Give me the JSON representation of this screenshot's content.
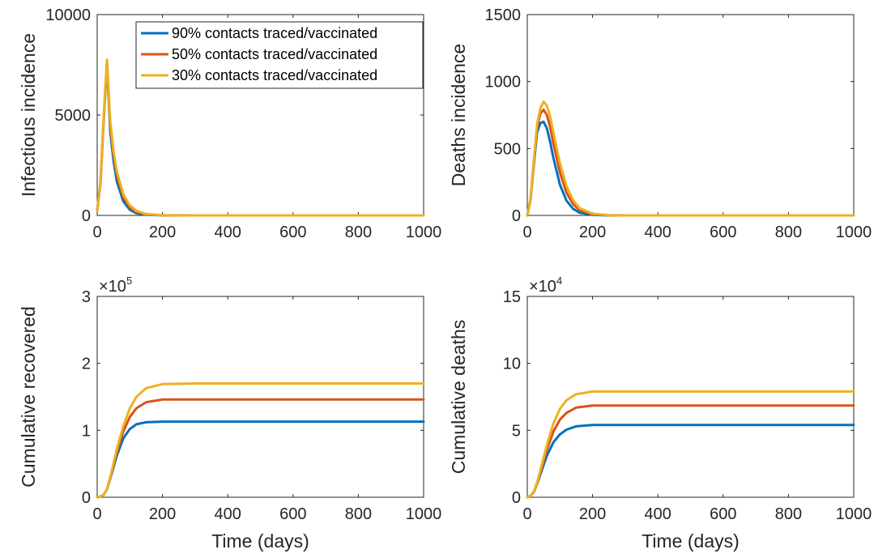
{
  "chart_data": [
    {
      "type": "line",
      "xlabel": "",
      "ylabel": "Infectious incidence",
      "xlim": [
        0,
        1000
      ],
      "ylim": [
        0,
        10000
      ],
      "xticks": [
        0,
        200,
        400,
        600,
        800,
        1000
      ],
      "yticks": [
        0,
        5000,
        10000
      ],
      "multiplier": null,
      "legend": "top-right",
      "series": [
        {
          "name": "90% contacts traced/vaccinated",
          "color": "#0072BD",
          "x": [
            0,
            10,
            20,
            30,
            40,
            50,
            60,
            80,
            100,
            120,
            150,
            200,
            300,
            1000
          ],
          "y": [
            250,
            1600,
            4800,
            7600,
            4200,
            2700,
            1700,
            700,
            280,
            110,
            30,
            5,
            0,
            0
          ]
        },
        {
          "name": "50% contacts traced/vaccinated",
          "color": "#D95319",
          "x": [
            0,
            10,
            20,
            30,
            40,
            50,
            60,
            80,
            100,
            120,
            150,
            200,
            300,
            1000
          ],
          "y": [
            250,
            1650,
            4900,
            7700,
            4500,
            3000,
            2000,
            900,
            400,
            170,
            50,
            8,
            0,
            0
          ]
        },
        {
          "name": "30% contacts traced/vaccinated",
          "color": "#EDB120",
          "x": [
            0,
            10,
            20,
            30,
            40,
            50,
            60,
            80,
            100,
            120,
            150,
            200,
            300,
            1000
          ],
          "y": [
            250,
            1700,
            5000,
            7750,
            4700,
            3200,
            2200,
            1050,
            500,
            230,
            70,
            12,
            0,
            0
          ]
        }
      ]
    },
    {
      "type": "line",
      "xlabel": "",
      "ylabel": "Deaths incidence",
      "xlim": [
        0,
        1000
      ],
      "ylim": [
        0,
        1500
      ],
      "xticks": [
        0,
        200,
        400,
        600,
        800,
        1000
      ],
      "yticks": [
        0,
        500,
        1000,
        1500
      ],
      "multiplier": null,
      "series": [
        {
          "name": "90% contacts traced/vaccinated",
          "color": "#0072BD",
          "x": [
            0,
            10,
            20,
            30,
            40,
            50,
            60,
            70,
            80,
            100,
            120,
            140,
            160,
            200,
            250,
            300,
            1000
          ],
          "y": [
            0,
            120,
            380,
            620,
            690,
            700,
            650,
            550,
            430,
            230,
            110,
            50,
            20,
            4,
            0,
            0,
            0
          ]
        },
        {
          "name": "50% contacts traced/vaccinated",
          "color": "#D95319",
          "x": [
            0,
            10,
            20,
            30,
            40,
            50,
            60,
            70,
            80,
            100,
            120,
            140,
            160,
            200,
            250,
            300,
            1000
          ],
          "y": [
            0,
            120,
            400,
            660,
            760,
            790,
            750,
            660,
            540,
            320,
            170,
            85,
            40,
            9,
            1,
            0,
            0
          ]
        },
        {
          "name": "30% contacts traced/vaccinated",
          "color": "#EDB120",
          "x": [
            0,
            10,
            20,
            30,
            40,
            50,
            60,
            70,
            80,
            100,
            120,
            140,
            160,
            200,
            250,
            300,
            1000
          ],
          "y": [
            0,
            125,
            410,
            680,
            800,
            850,
            820,
            740,
            620,
            390,
            220,
            115,
            55,
            13,
            2,
            0,
            0
          ]
        }
      ]
    },
    {
      "type": "line",
      "xlabel": "Time (days)",
      "ylabel": "Cumulative recovered",
      "xlim": [
        0,
        1000
      ],
      "ylim": [
        0,
        3
      ],
      "xticks": [
        0,
        200,
        400,
        600,
        800,
        1000
      ],
      "yticks": [
        0,
        1,
        2,
        3
      ],
      "multiplier": {
        "base": "×10",
        "exp": "5"
      },
      "series": [
        {
          "name": "90% contacts traced/vaccinated",
          "color": "#0072BD",
          "x": [
            0,
            10,
            20,
            30,
            40,
            50,
            60,
            80,
            100,
            120,
            150,
            200,
            300,
            1000
          ],
          "y": [
            0,
            0.01,
            0.04,
            0.12,
            0.28,
            0.45,
            0.62,
            0.88,
            1.02,
            1.09,
            1.12,
            1.13,
            1.13,
            1.13
          ]
        },
        {
          "name": "50% contacts traced/vaccinated",
          "color": "#D95319",
          "x": [
            0,
            10,
            20,
            30,
            40,
            50,
            60,
            80,
            100,
            120,
            150,
            200,
            300,
            1000
          ],
          "y": [
            0,
            0.01,
            0.04,
            0.12,
            0.29,
            0.48,
            0.67,
            0.98,
            1.2,
            1.33,
            1.42,
            1.46,
            1.46,
            1.46
          ]
        },
        {
          "name": "30% contacts traced/vaccinated",
          "color": "#EDB120",
          "x": [
            0,
            10,
            20,
            30,
            40,
            50,
            60,
            80,
            100,
            120,
            150,
            200,
            300,
            1000
          ],
          "y": [
            0,
            0.01,
            0.04,
            0.12,
            0.3,
            0.51,
            0.72,
            1.06,
            1.33,
            1.5,
            1.63,
            1.69,
            1.7,
            1.7
          ]
        }
      ]
    },
    {
      "type": "line",
      "xlabel": "Time (days)",
      "ylabel": "Cumulative deaths",
      "xlim": [
        0,
        1000
      ],
      "ylim": [
        0,
        15
      ],
      "xticks": [
        0,
        200,
        400,
        600,
        800,
        1000
      ],
      "yticks": [
        0,
        5,
        10,
        15
      ],
      "multiplier": {
        "base": "×10",
        "exp": "4"
      },
      "series": [
        {
          "name": "90% contacts traced/vaccinated",
          "color": "#0072BD",
          "x": [
            0,
            10,
            20,
            30,
            40,
            50,
            60,
            80,
            100,
            120,
            150,
            200,
            300,
            1000
          ],
          "y": [
            0,
            0.1,
            0.4,
            1.0,
            1.7,
            2.4,
            3.1,
            4.1,
            4.7,
            5.05,
            5.3,
            5.4,
            5.4,
            5.4
          ]
        },
        {
          "name": "50% contacts traced/vaccinated",
          "color": "#D95319",
          "x": [
            0,
            10,
            20,
            30,
            40,
            50,
            60,
            80,
            100,
            120,
            150,
            200,
            300,
            1000
          ],
          "y": [
            0,
            0.1,
            0.4,
            1.05,
            1.85,
            2.7,
            3.55,
            4.9,
            5.8,
            6.3,
            6.7,
            6.85,
            6.85,
            6.85
          ]
        },
        {
          "name": "30% contacts traced/vaccinated",
          "color": "#EDB120",
          "x": [
            0,
            10,
            20,
            30,
            40,
            50,
            60,
            80,
            100,
            120,
            150,
            200,
            300,
            1000
          ],
          "y": [
            0,
            0.1,
            0.45,
            1.1,
            2.0,
            2.95,
            3.9,
            5.5,
            6.6,
            7.25,
            7.7,
            7.9,
            7.9,
            7.9
          ]
        }
      ]
    }
  ]
}
